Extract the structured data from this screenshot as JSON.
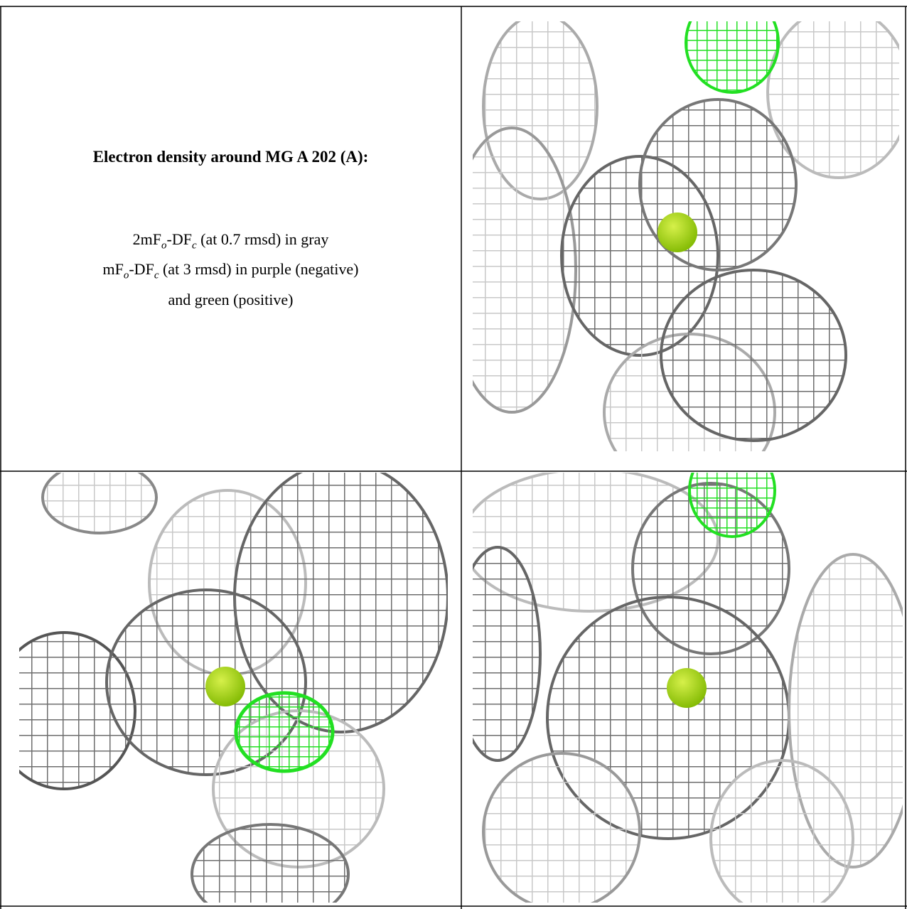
{
  "title": "Electron density around MG A 202 (A):",
  "legend": [
    [
      "2mF",
      "o",
      "-DF",
      "c",
      " (at 0.7 rmsd) in gray"
    ],
    [
      "mF",
      "o",
      "-DF",
      "c",
      " (at 3 rmsd) in purple (negative)"
    ],
    [
      "and green (positive)"
    ]
  ]
}
